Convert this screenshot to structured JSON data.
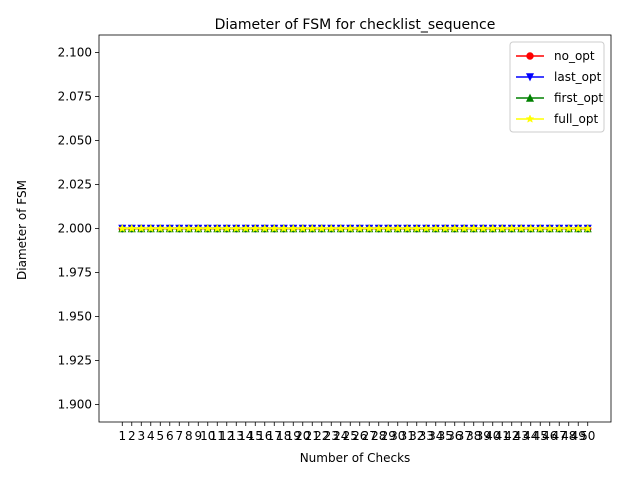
{
  "chart_data": {
    "type": "line",
    "title": "Diameter of FSM for checklist_sequence",
    "xlabel": "Number of Checks",
    "ylabel": "Diameter of FSM",
    "x": [
      1,
      2,
      3,
      4,
      5,
      6,
      7,
      8,
      9,
      10,
      11,
      12,
      13,
      14,
      15,
      16,
      17,
      18,
      19,
      20,
      21,
      22,
      23,
      24,
      25,
      26,
      27,
      28,
      29,
      30,
      31,
      32,
      33,
      34,
      35,
      36,
      37,
      38,
      39,
      40,
      41,
      42,
      43,
      44,
      45,
      46,
      47,
      48,
      49,
      50
    ],
    "xlim": [
      -1.45,
      52.45
    ],
    "ylim": [
      1.89,
      2.11
    ],
    "yticks": [
      1.9,
      1.925,
      1.95,
      1.975,
      2.0,
      2.025,
      2.05,
      2.075,
      2.1
    ],
    "ytick_labels": [
      "1.900",
      "1.925",
      "1.950",
      "1.975",
      "2.000",
      "2.025",
      "2.050",
      "2.075",
      "2.100"
    ],
    "legend_position": "top-right",
    "grid": false,
    "series": [
      {
        "name": "no_opt",
        "color": "#ff0000",
        "marker": "circle",
        "values": [
          2,
          2,
          2,
          2,
          2,
          2,
          2,
          2,
          2,
          2,
          2,
          2,
          2,
          2,
          2,
          2,
          2,
          2,
          2,
          2,
          2,
          2,
          2,
          2,
          2,
          2,
          2,
          2,
          2,
          2,
          2,
          2,
          2,
          2,
          2,
          2,
          2,
          2,
          2,
          2,
          2,
          2,
          2,
          2,
          2,
          2,
          2,
          2,
          2,
          2
        ]
      },
      {
        "name": "last_opt",
        "color": "#0000ff",
        "marker": "triangle-down",
        "values": [
          2,
          2,
          2,
          2,
          2,
          2,
          2,
          2,
          2,
          2,
          2,
          2,
          2,
          2,
          2,
          2,
          2,
          2,
          2,
          2,
          2,
          2,
          2,
          2,
          2,
          2,
          2,
          2,
          2,
          2,
          2,
          2,
          2,
          2,
          2,
          2,
          2,
          2,
          2,
          2,
          2,
          2,
          2,
          2,
          2,
          2,
          2,
          2,
          2,
          2
        ]
      },
      {
        "name": "first_opt",
        "color": "#008000",
        "marker": "triangle-up",
        "values": [
          2,
          2,
          2,
          2,
          2,
          2,
          2,
          2,
          2,
          2,
          2,
          2,
          2,
          2,
          2,
          2,
          2,
          2,
          2,
          2,
          2,
          2,
          2,
          2,
          2,
          2,
          2,
          2,
          2,
          2,
          2,
          2,
          2,
          2,
          2,
          2,
          2,
          2,
          2,
          2,
          2,
          2,
          2,
          2,
          2,
          2,
          2,
          2,
          2,
          2
        ]
      },
      {
        "name": "full_opt",
        "color": "#ffff00",
        "marker": "star",
        "values": [
          2,
          2,
          2,
          2,
          2,
          2,
          2,
          2,
          2,
          2,
          2,
          2,
          2,
          2,
          2,
          2,
          2,
          2,
          2,
          2,
          2,
          2,
          2,
          2,
          2,
          2,
          2,
          2,
          2,
          2,
          2,
          2,
          2,
          2,
          2,
          2,
          2,
          2,
          2,
          2,
          2,
          2,
          2,
          2,
          2,
          2,
          2,
          2,
          2,
          2
        ]
      }
    ]
  }
}
